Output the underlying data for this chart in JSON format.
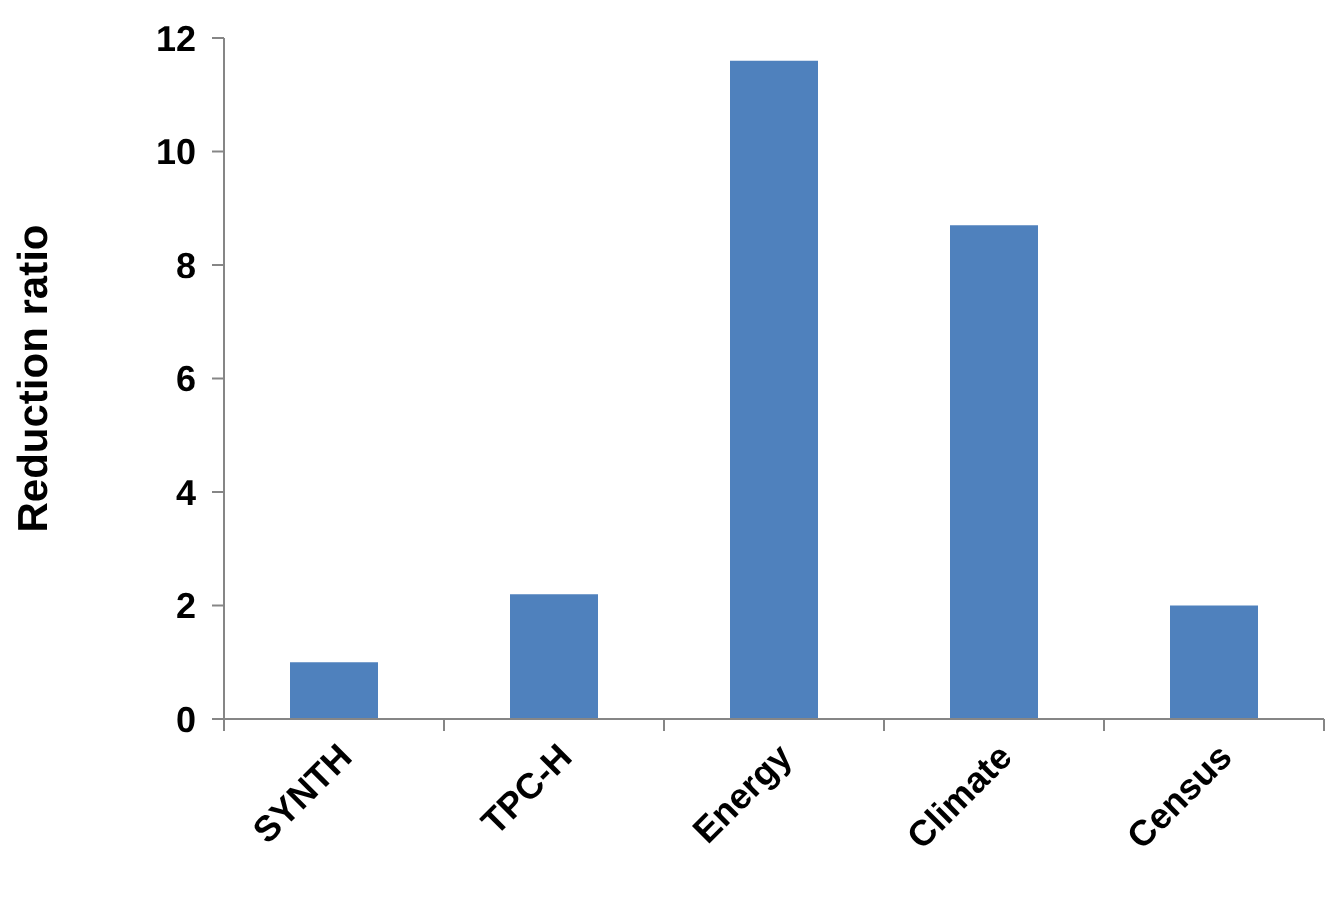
{
  "chart_data": {
    "type": "bar",
    "ylabel": "Reduction ratio",
    "categories": [
      "SYNTH",
      "TPC-H",
      "Energy",
      "Climate",
      "Census"
    ],
    "values": [
      1.0,
      2.2,
      11.6,
      8.7,
      2.0
    ],
    "color": "#4f81bd",
    "ylim": [
      0,
      12
    ],
    "yticks": [
      0,
      2,
      4,
      6,
      8,
      10,
      12
    ],
    "grid": false,
    "legend": false
  }
}
